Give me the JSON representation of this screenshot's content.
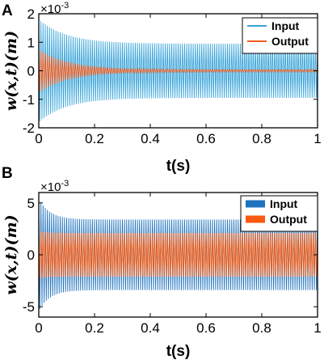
{
  "figure": {
    "panel_labels": [
      "A",
      "B"
    ]
  },
  "chart_data": [
    {
      "type": "line",
      "panel": "A",
      "xlabel": "t(s)",
      "ylabel": "w(x,t)(m)",
      "y_exponent": "×10-3",
      "xlim": [
        0,
        1
      ],
      "ylim": [
        -2,
        2
      ],
      "xticks": [
        "0",
        "0.2",
        "0.4",
        "0.6",
        "0.8",
        "1"
      ],
      "yticks": [
        "2",
        "1",
        "0",
        "-1",
        "-2"
      ],
      "grid": false,
      "legend": "top-right",
      "series": [
        {
          "name": "Input",
          "color": "#3aa4d9",
          "envelope": {
            "peak": 1.8,
            "steady": 0.95,
            "decay": 10
          }
        },
        {
          "name": "Output",
          "color": "#f25c1f",
          "envelope": {
            "peak": 0.75,
            "steady": 0.04,
            "decay": 9
          }
        }
      ]
    },
    {
      "type": "line",
      "panel": "B",
      "xlabel": "t(s)",
      "ylabel": "w(x,t)(m)",
      "y_exponent": "×10-3",
      "xlim": [
        0,
        1
      ],
      "ylim": [
        -6,
        6
      ],
      "xticks": [
        "0",
        "0.2",
        "0.4",
        "0.6",
        "0.8",
        "1"
      ],
      "yticks": [
        "5",
        "0",
        "-5"
      ],
      "grid": false,
      "legend": "top-right",
      "series": [
        {
          "name": "Input",
          "color": "#1f72bd",
          "envelope": {
            "peak": 5.4,
            "steady": 3.4,
            "decay": 25
          }
        },
        {
          "name": "Output",
          "color": "#fa5a0f",
          "envelope": {
            "peak": 2.3,
            "steady": 2.1,
            "decay": 30
          }
        }
      ]
    }
  ]
}
